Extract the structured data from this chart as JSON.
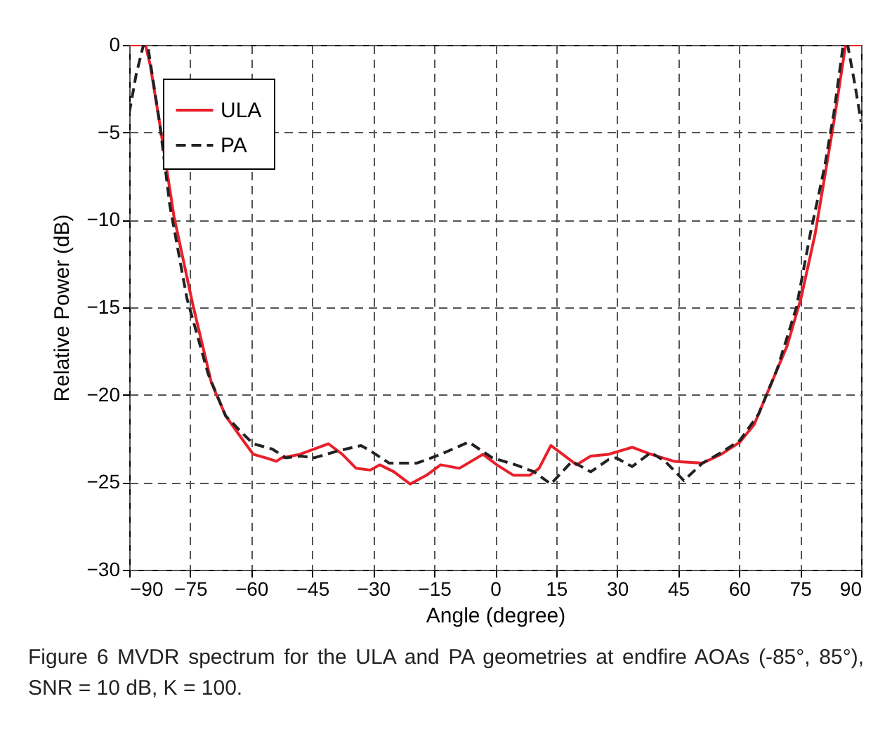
{
  "chart_data": {
    "type": "line",
    "xlabel": "Angle (degree)",
    "ylabel": "Relative Power (dB)",
    "annotations": [
      "Figure 6 MVDR spectrum for the ULA and PA geometries at endfire AOAs (-85°, 85°), SNR = 10 dB, K = 100."
    ],
    "xlim": [
      -90,
      90
    ],
    "xticks": [
      -90,
      -75,
      -60,
      -45,
      -30,
      -15,
      0,
      15,
      30,
      45,
      60,
      75,
      90
    ],
    "ylim": [
      -30,
      0
    ],
    "yticks": [
      -30,
      -25,
      -20,
      -15,
      -10,
      -5,
      0
    ],
    "grid": true,
    "legend": "top left",
    "series": [
      {
        "name": "ULA",
        "color": "#e8202a",
        "line_style": "solid",
        "x": [
          -90,
          -86,
          -84.8,
          -82.5,
          -79,
          -74.4,
          -69.8,
          -66.3,
          -61.7,
          -59.5,
          -56.5,
          -53.8,
          -52.5,
          -48,
          -41,
          -37.6,
          -34.2,
          -30.7,
          -28.4,
          -24.9,
          -20.9,
          -16.9,
          -13.4,
          -8.8,
          -3,
          0.4,
          4.5,
          8.5,
          10.8,
          13.7,
          16.6,
          20,
          23.5,
          27.9,
          33.7,
          38.3,
          44,
          51,
          55.6,
          60.2,
          63.7,
          67.1,
          71.8,
          75.2,
          78.7,
          81,
          83.3,
          86.2,
          90
        ],
        "values": [
          0,
          0,
          -1.2,
          -4.5,
          -9.8,
          -14.8,
          -19.3,
          -21.2,
          -22.7,
          -23.4,
          -23.6,
          -23.8,
          -23.6,
          -23.4,
          -22.8,
          -23.4,
          -24.2,
          -24.3,
          -24,
          -24.4,
          -25.1,
          -24.6,
          -24,
          -24.2,
          -23.4,
          -24,
          -24.6,
          -24.6,
          -24.2,
          -22.9,
          -23.4,
          -24,
          -23.5,
          -23.4,
          -23,
          -23.4,
          -23.8,
          -23.9,
          -23.4,
          -22.7,
          -21.7,
          -19.8,
          -17.2,
          -14.5,
          -10.8,
          -7.6,
          -4.4,
          0,
          0
        ]
      },
      {
        "name": "PA",
        "color": "#222222",
        "line_style": "dashed",
        "x": [
          -90,
          -88.3,
          -86.5,
          -85.4,
          -82.5,
          -80,
          -75.8,
          -70.6,
          -66.3,
          -61.7,
          -59.5,
          -54.8,
          -51.5,
          -47.8,
          -44.5,
          -38.6,
          -33,
          -30.7,
          -26.1,
          -19.2,
          -13.4,
          -6.5,
          -0.7,
          5,
          9.6,
          13.7,
          18.9,
          23.5,
          27.9,
          29.8,
          33.7,
          38.3,
          41.8,
          46.4,
          51,
          55.6,
          60.2,
          64.8,
          69.4,
          74.1,
          77.5,
          81,
          83.3,
          85.6,
          86.7,
          88.5,
          90
        ],
        "values": [
          -3.9,
          -1.7,
          0,
          -0.1,
          -4.5,
          -9.2,
          -14.5,
          -18.8,
          -21.2,
          -22.3,
          -22.8,
          -23.1,
          -23.6,
          -23.5,
          -23.6,
          -23.2,
          -22.9,
          -23.2,
          -23.9,
          -23.9,
          -23.4,
          -22.7,
          -23.6,
          -24,
          -24.4,
          -25.1,
          -23.8,
          -24.4,
          -23.7,
          -23.6,
          -24.1,
          -23.3,
          -23.8,
          -24.9,
          -23.9,
          -23.3,
          -22.6,
          -21.1,
          -18.5,
          -15,
          -10.8,
          -7,
          -3.9,
          0,
          0,
          -2.3,
          -4.4
        ]
      }
    ]
  }
}
